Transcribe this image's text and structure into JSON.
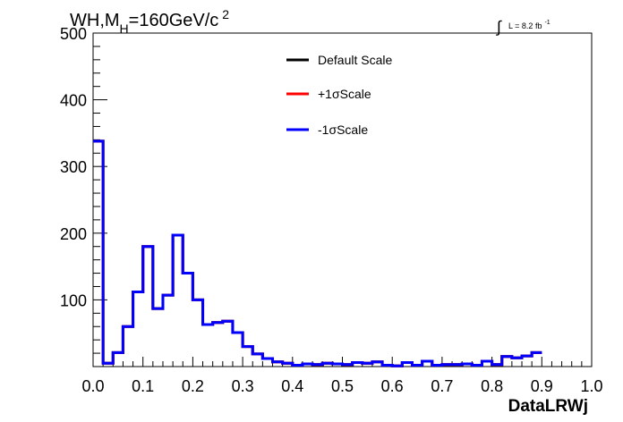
{
  "chart_data": {
    "type": "histogram",
    "title_main": "WH,M",
    "title_sub": "H",
    "title_rest": "=160GeV/c",
    "title_sup": "2",
    "lumi_text": "L = 8.2 fb",
    "lumi_sup": "-1",
    "xlabel": "DataLRWj",
    "ylabel": "",
    "xlim": [
      0.0,
      1.0
    ],
    "ylim": [
      0,
      500
    ],
    "x_ticks": [
      "0.0",
      "0.1",
      "0.2",
      "0.3",
      "0.4",
      "0.5",
      "0.6",
      "0.7",
      "0.8",
      "0.9",
      "1.0"
    ],
    "y_ticks": [
      "100",
      "200",
      "300",
      "400",
      "500"
    ],
    "bin_width": 0.02,
    "legend_position": "top-center",
    "series": [
      {
        "name": "Default Scale",
        "color": "#000000",
        "values": [
          338,
          5,
          21,
          60,
          112,
          180,
          87,
          107,
          197,
          140,
          100,
          63,
          66,
          68,
          51,
          30,
          19,
          12,
          7,
          5,
          2,
          4,
          3,
          5,
          4,
          3,
          6,
          5,
          7,
          2,
          1,
          6,
          2,
          8,
          2,
          3,
          3,
          4,
          2,
          8,
          3,
          15,
          13,
          16,
          21
        ]
      },
      {
        "name": "+1σScale",
        "color": "#ff0000",
        "values": [
          338,
          5,
          21,
          60,
          112,
          180,
          87,
          107,
          197,
          140,
          100,
          63,
          66,
          68,
          51,
          30,
          19,
          12,
          7,
          5,
          2,
          4,
          3,
          5,
          4,
          3,
          6,
          5,
          7,
          2,
          1,
          6,
          2,
          8,
          2,
          3,
          3,
          4,
          2,
          8,
          3,
          15,
          13,
          16,
          21
        ]
      },
      {
        "name": "-1σScale",
        "color": "#0000ff",
        "values": [
          338,
          5,
          21,
          60,
          112,
          180,
          87,
          107,
          197,
          140,
          100,
          63,
          66,
          68,
          51,
          30,
          19,
          12,
          7,
          5,
          2,
          4,
          3,
          5,
          4,
          3,
          6,
          5,
          7,
          2,
          1,
          6,
          2,
          8,
          2,
          3,
          3,
          4,
          2,
          8,
          3,
          15,
          13,
          16,
          21
        ]
      }
    ]
  }
}
